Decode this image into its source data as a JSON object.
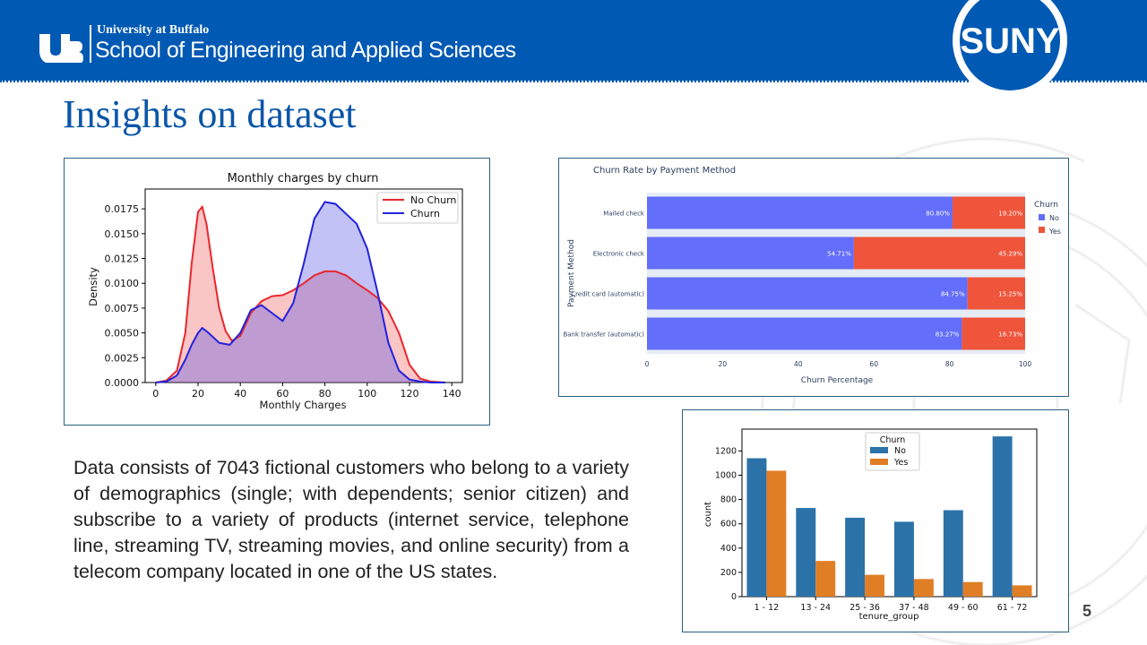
{
  "header": {
    "university": "University at Buffalo",
    "school": "School of Engineering and Applied Sciences",
    "suny_logo_text": "SUNY",
    "brand_color": "#0059b3"
  },
  "slide": {
    "title": "Insights on dataset",
    "body": "Data consists of 7043 fictional customers who belong to a variety of demographics (single; with dependents; senior citizen) and subscribe to a variety of products (internet service, telephone line, streaming TV, streaming movies, and online security) from a telecom company located in one of the US states.",
    "page_number": "5"
  },
  "chart_data": [
    {
      "type": "area",
      "title": "Monthly charges by churn",
      "xlabel": "Monthly Charges",
      "ylabel": "Density",
      "xlim": [
        -5,
        145
      ],
      "ylim": [
        0,
        0.0195
      ],
      "x_ticks": [
        0,
        20,
        40,
        60,
        80,
        100,
        120,
        140
      ],
      "y_ticks": [
        "0.0000",
        "0.0025",
        "0.0050",
        "0.0075",
        "0.0100",
        "0.0125",
        "0.0150",
        "0.0175"
      ],
      "legend_position": "top-right",
      "series": [
        {
          "name": "No Churn",
          "color": "#e8282d",
          "x": [
            0,
            5,
            10,
            14,
            17,
            20,
            22,
            24,
            27,
            30,
            33,
            36,
            40,
            45,
            50,
            55,
            60,
            65,
            70,
            75,
            80,
            85,
            90,
            95,
            100,
            105,
            110,
            115,
            120,
            125,
            130,
            137
          ],
          "y": [
            0.0,
            0.0002,
            0.0012,
            0.005,
            0.012,
            0.0172,
            0.0177,
            0.016,
            0.0115,
            0.0075,
            0.0052,
            0.0042,
            0.0047,
            0.007,
            0.0082,
            0.0087,
            0.0088,
            0.0093,
            0.01,
            0.0108,
            0.0112,
            0.0112,
            0.0108,
            0.01,
            0.0093,
            0.0085,
            0.0072,
            0.005,
            0.0018,
            0.0004,
            0.0001,
            0.0
          ]
        },
        {
          "name": "Churn",
          "color": "#2222dd",
          "x": [
            0,
            5,
            10,
            14,
            17,
            20,
            22,
            25,
            30,
            35,
            40,
            45,
            50,
            55,
            60,
            65,
            70,
            75,
            80,
            85,
            90,
            95,
            100,
            105,
            110,
            115,
            120,
            125,
            130,
            137
          ],
          "y": [
            0.0,
            0.0001,
            0.0007,
            0.0023,
            0.0038,
            0.005,
            0.0055,
            0.005,
            0.004,
            0.0038,
            0.005,
            0.0073,
            0.0078,
            0.007,
            0.0062,
            0.008,
            0.012,
            0.0165,
            0.0182,
            0.018,
            0.017,
            0.016,
            0.0135,
            0.009,
            0.004,
            0.0012,
            0.0003,
            0.0001,
            0.0,
            0.0
          ]
        }
      ]
    },
    {
      "type": "bar",
      "title": "Churn Rate by Payment Method",
      "xlabel": "Churn Percentage",
      "ylabel": "Payment Method",
      "xlim": [
        0,
        100
      ],
      "x_ticks": [
        0,
        20,
        40,
        60,
        80,
        100
      ],
      "orientation": "horizontal",
      "stacked": true,
      "legend_title": "Churn",
      "legend_position": "right",
      "categories": [
        "Mailed check",
        "Electronic check",
        "Credit card (automatic)",
        "Bank transfer (automatic)"
      ],
      "series": [
        {
          "name": "No",
          "color": "#636efa",
          "values": [
            80.8,
            54.71,
            84.75,
            83.27
          ],
          "labels": [
            "80.80%",
            "54.71%",
            "84.75%",
            "83.27%"
          ]
        },
        {
          "name": "Yes",
          "color": "#ef553b",
          "values": [
            19.2,
            45.29,
            15.25,
            16.73
          ],
          "labels": [
            "19.20%",
            "45.29%",
            "15.25%",
            "16.73%"
          ]
        }
      ]
    },
    {
      "type": "bar",
      "xlabel": "tenure_group",
      "ylabel": "count",
      "ylim": [
        0,
        1380
      ],
      "y_ticks": [
        0,
        200,
        400,
        600,
        800,
        1000,
        1200
      ],
      "legend_title": "Churn",
      "legend_position": "top-center",
      "categories": [
        "1 - 12",
        "13 - 24",
        "25 - 36",
        "37 - 48",
        "49 - 60",
        "61 - 72"
      ],
      "series": [
        {
          "name": "No",
          "color": "#2b72a8",
          "values": [
            1140,
            730,
            650,
            617,
            712,
            1320
          ]
        },
        {
          "name": "Yes",
          "color": "#e07e25",
          "values": [
            1037,
            294,
            180,
            145,
            120,
            93
          ]
        }
      ]
    }
  ]
}
